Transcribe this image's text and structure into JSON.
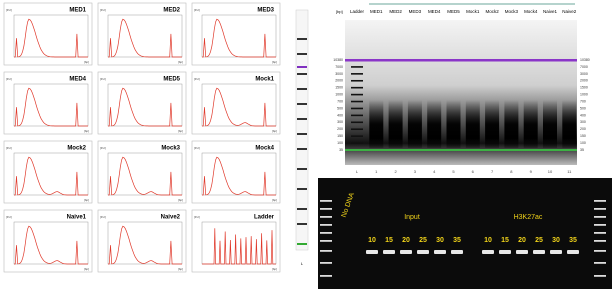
{
  "electropherograms": {
    "panels": [
      {
        "title": "MED1"
      },
      {
        "title": "MED2"
      },
      {
        "title": "MED3"
      },
      {
        "title": "MED4"
      },
      {
        "title": "MED5"
      },
      {
        "title": "Mock1"
      },
      {
        "title": "Mock2"
      },
      {
        "title": "Mock3"
      },
      {
        "title": "Mock4"
      },
      {
        "title": "Naive1"
      },
      {
        "title": "Naive2"
      },
      {
        "title": "Ladder"
      }
    ],
    "x_unit": "[bp]",
    "y_unit": "[FU]"
  },
  "ladder_strip": {
    "label": "L"
  },
  "virtual_gel": {
    "header": "[bp]",
    "lanes": [
      "Ladder",
      "MED1",
      "MED2",
      "MED3",
      "MED4",
      "MED5",
      "Mock1",
      "Mock2",
      "Mock3",
      "Mock4",
      "Naive1",
      "Naive2"
    ],
    "lane_numbers": [
      "L",
      "1",
      "2",
      "3",
      "4",
      "5",
      "6",
      "7",
      "8",
      "9",
      "10",
      "11"
    ],
    "sizes": [
      "10380",
      "7000",
      "3000",
      "2000",
      "1500",
      "1000",
      "700",
      "500",
      "400",
      "300",
      "200",
      "150",
      "100",
      "35"
    ]
  },
  "agarose_gel": {
    "no_dna": "No DNA",
    "groups": [
      {
        "label": "Input",
        "lanes": [
          "10",
          "15",
          "20",
          "25",
          "30",
          "35"
        ]
      },
      {
        "label": "H3K27ac",
        "lanes": [
          "10",
          "15",
          "20",
          "25",
          "30",
          "35"
        ]
      }
    ]
  }
}
